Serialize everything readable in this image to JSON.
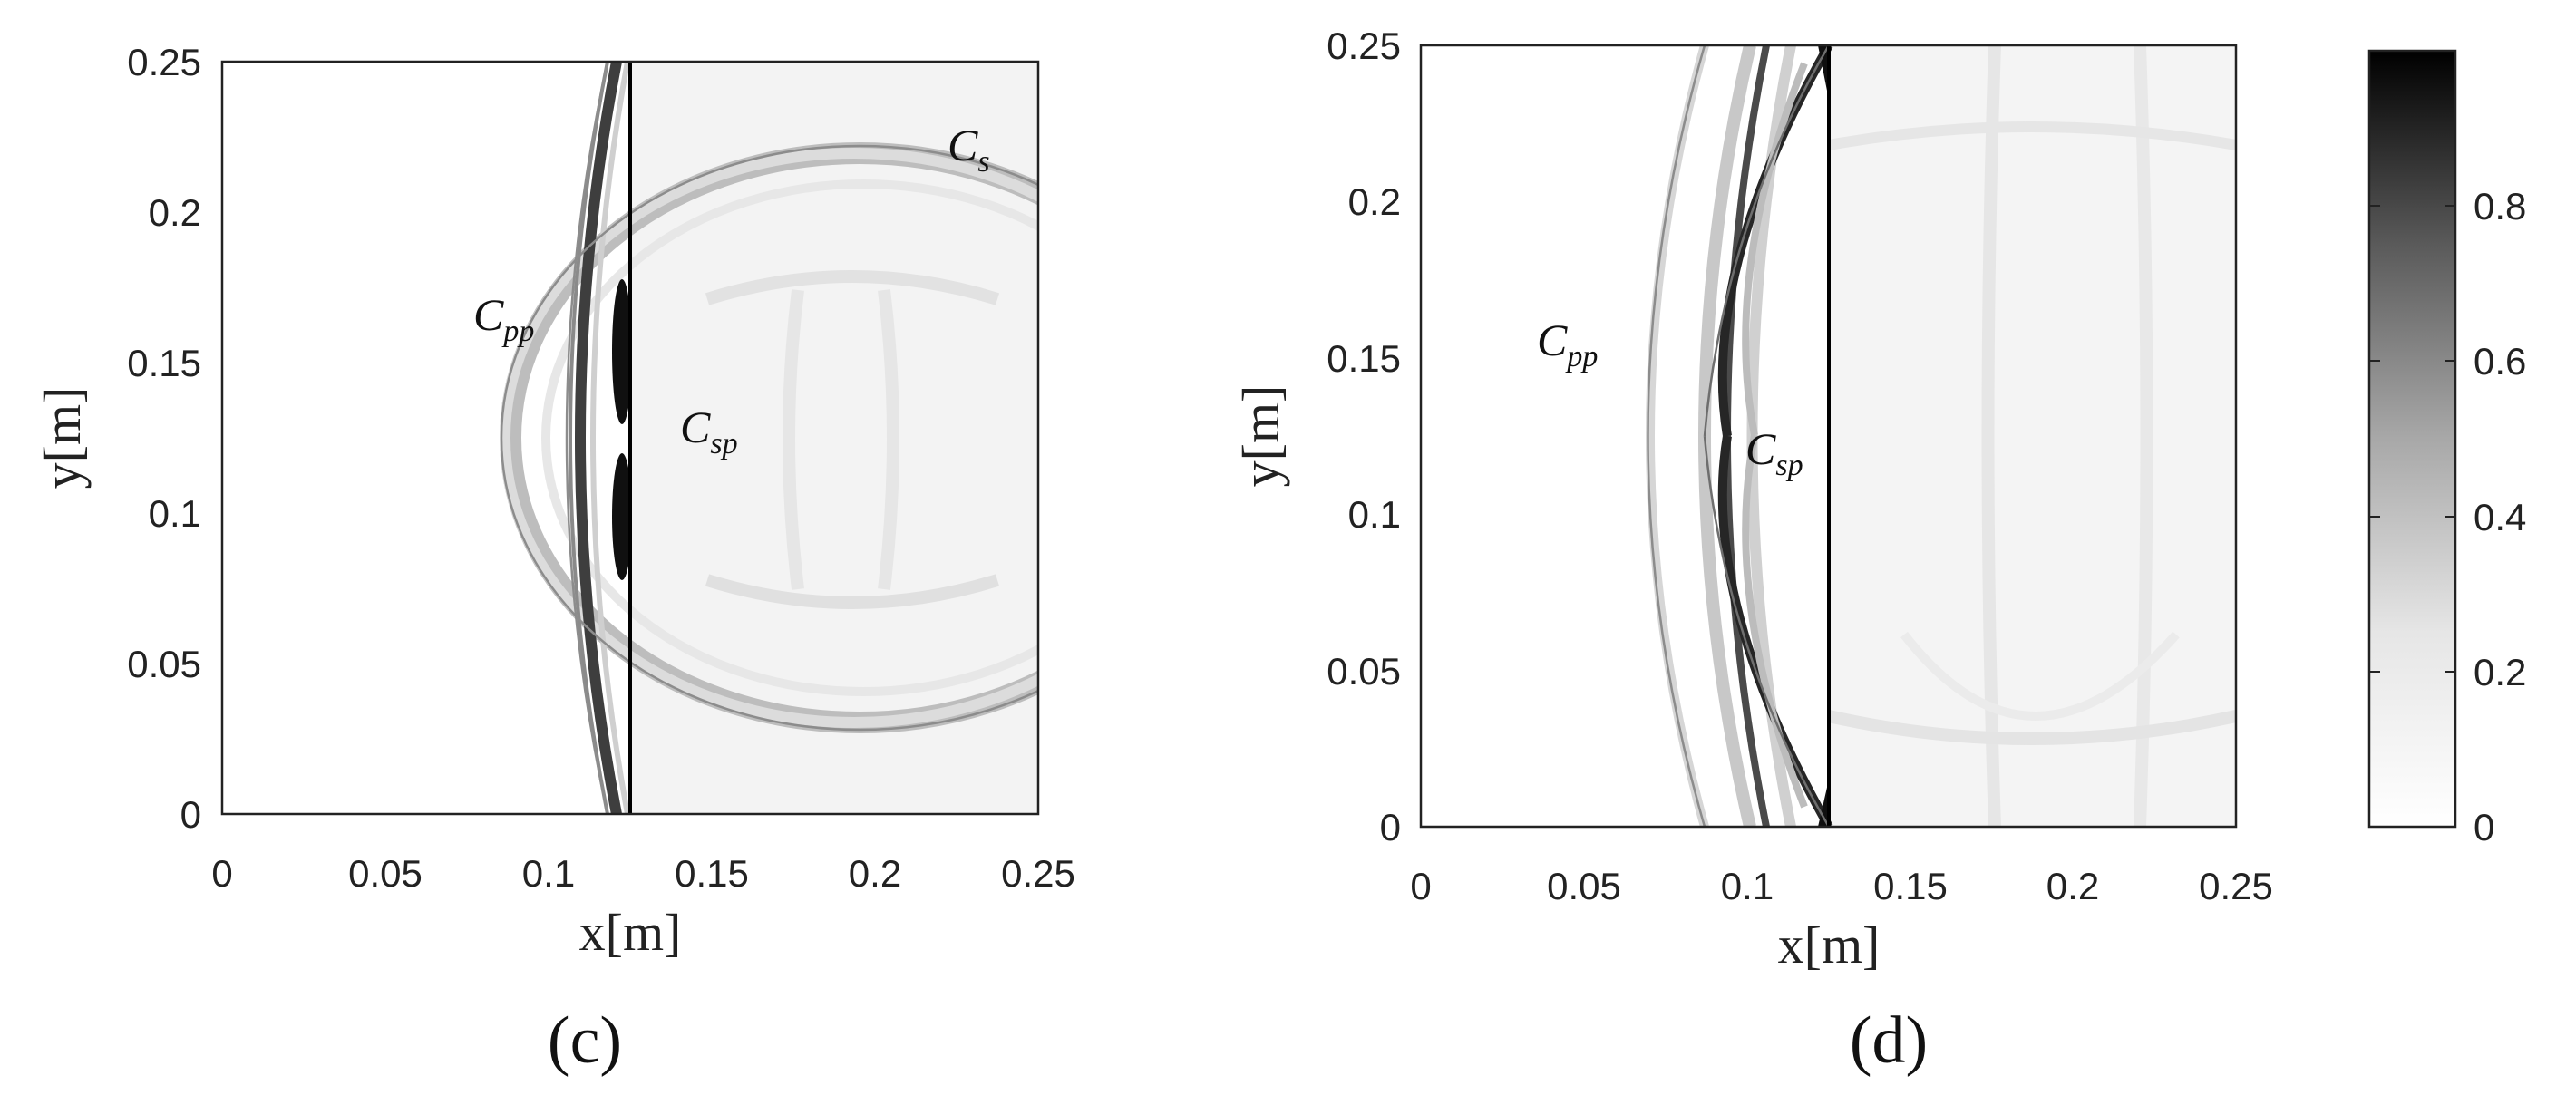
{
  "chart_data": [
    {
      "type": "heatmap",
      "panel_label": "(c)",
      "xlabel": "x[m]",
      "ylabel": "y[m]",
      "xlim": [
        0,
        0.25
      ],
      "ylim": [
        0,
        0.25
      ],
      "xticks": [
        "0",
        "0.05",
        "0.1",
        "0.15",
        "0.2",
        "0.25"
      ],
      "yticks": [
        "0",
        "0.05",
        "0.1",
        "0.15",
        "0.2",
        "0.25"
      ],
      "annotations": [
        {
          "base": "C",
          "sub": "pp",
          "x": 0.087,
          "y": 0.162
        },
        {
          "base": "C",
          "sub": "sp",
          "x": 0.14,
          "y": 0.126
        },
        {
          "base": "C",
          "sub": "s",
          "x": 0.222,
          "y": 0.218
        }
      ],
      "interface_x": 0.125,
      "circle": {
        "cx": 0.195,
        "cy": 0.125,
        "r": 0.085
      },
      "head_wave_vertex": [
        0.102,
        0.125
      ]
    },
    {
      "type": "heatmap",
      "panel_label": "(d)",
      "xlabel": "x[m]",
      "ylabel": "y[m]",
      "xlim": [
        0,
        0.25
      ],
      "ylim": [
        0,
        0.25
      ],
      "xticks": [
        "0",
        "0.05",
        "0.1",
        "0.15",
        "0.2",
        "0.25"
      ],
      "yticks": [
        "0",
        "0.05",
        "0.1",
        "0.15",
        "0.2",
        "0.25"
      ],
      "annotations": [
        {
          "base": "C",
          "sub": "pp",
          "x": 0.036,
          "y": 0.158
        },
        {
          "base": "C",
          "sub": "sp",
          "x": 0.101,
          "y": 0.122
        }
      ],
      "interface_x": 0.125,
      "head_wave_vertex": [
        0.072,
        0.125
      ],
      "colorbar": {
        "range": [
          0,
          1
        ],
        "ticks": [
          "0",
          "0.2",
          "0.4",
          "0.6",
          "0.8"
        ],
        "colormap": [
          "#ffffff",
          "#000000"
        ]
      }
    }
  ]
}
